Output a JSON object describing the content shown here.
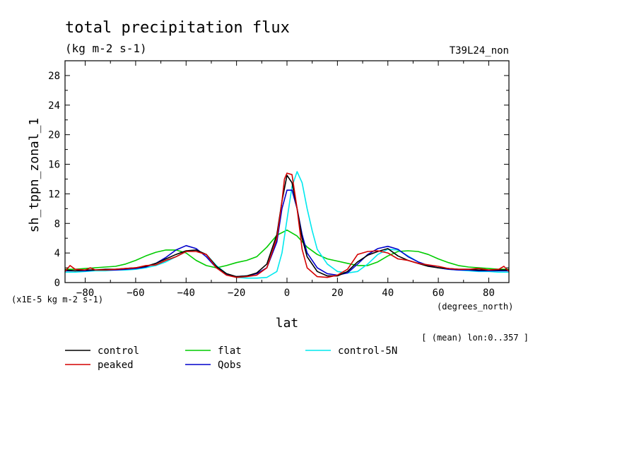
{
  "chart_data": {
    "type": "line",
    "title": "total precipitation flux",
    "subtitle": "(kg m-2 s-1)",
    "run_label": "T39L24_non",
    "xlabel": "lat",
    "xunits": "(degrees_north)",
    "ylabel": "sh_tppn_zonal_1",
    "yscale_label": "(x1E-5 kg m-2 s-1)",
    "footnote": "[ (mean) lon:0..357 ]",
    "xlim": [
      -88,
      88
    ],
    "ylim": [
      0,
      30
    ],
    "xticks": [
      -80,
      -60,
      -40,
      -20,
      0,
      20,
      40,
      60,
      80
    ],
    "yticks": [
      0,
      4,
      8,
      12,
      16,
      20,
      24,
      28
    ],
    "grid": false,
    "legend_position": "bottom",
    "series": [
      {
        "name": "control",
        "color": "#000000",
        "x": [
          -88,
          -84,
          -80,
          -76,
          -72,
          -68,
          -64,
          -60,
          -56,
          -52,
          -48,
          -44,
          -40,
          -36,
          -32,
          -28,
          -24,
          -20,
          -16,
          -12,
          -8,
          -4,
          -2,
          0,
          2,
          4,
          6,
          8,
          12,
          16,
          20,
          24,
          28,
          32,
          36,
          40,
          44,
          48,
          52,
          56,
          60,
          64,
          68,
          72,
          76,
          80,
          84,
          88
        ],
        "y": [
          1.7,
          1.6,
          1.7,
          1.7,
          1.8,
          1.8,
          1.9,
          2.0,
          2.2,
          2.6,
          3.2,
          3.8,
          4.3,
          4.4,
          3.8,
          2.2,
          1.2,
          0.8,
          0.9,
          1.3,
          2.5,
          6.5,
          11.0,
          14.5,
          13.5,
          10.0,
          6.0,
          3.5,
          1.5,
          0.9,
          0.9,
          1.5,
          2.8,
          3.7,
          4.2,
          4.6,
          3.6,
          3.0,
          2.6,
          2.2,
          2.0,
          1.9,
          1.8,
          1.8,
          1.7,
          1.7,
          1.7,
          1.7
        ]
      },
      {
        "name": "peaked",
        "color": "#d40000",
        "x": [
          -88,
          -86,
          -84,
          -80,
          -78,
          -76,
          -72,
          -68,
          -64,
          -60,
          -56,
          -52,
          -48,
          -44,
          -40,
          -36,
          -32,
          -28,
          -24,
          -20,
          -16,
          -12,
          -8,
          -4,
          -2,
          -1,
          0,
          2,
          4,
          6,
          8,
          12,
          16,
          20,
          24,
          28,
          32,
          36,
          40,
          44,
          48,
          52,
          56,
          60,
          64,
          68,
          72,
          76,
          80,
          84,
          86,
          88
        ],
        "y": [
          1.5,
          2.3,
          1.8,
          1.7,
          2.0,
          1.7,
          1.7,
          1.8,
          1.9,
          2.0,
          2.3,
          2.4,
          3.0,
          3.5,
          4.2,
          4.2,
          3.8,
          2.0,
          1.0,
          0.7,
          0.8,
          1.0,
          2.0,
          6.0,
          11.0,
          14.0,
          14.8,
          14.6,
          10.0,
          4.5,
          2.0,
          0.8,
          0.7,
          1.0,
          1.8,
          3.8,
          4.2,
          4.3,
          4.0,
          3.2,
          3.0,
          2.6,
          2.4,
          2.2,
          1.9,
          1.8,
          1.8,
          1.9,
          1.7,
          1.8,
          2.2,
          1.5
        ]
      },
      {
        "name": "flat",
        "color": "#00cc00",
        "x": [
          -88,
          -84,
          -80,
          -76,
          -72,
          -68,
          -64,
          -60,
          -56,
          -52,
          -48,
          -44,
          -40,
          -36,
          -32,
          -28,
          -24,
          -20,
          -16,
          -12,
          -8,
          -4,
          0,
          4,
          8,
          12,
          16,
          20,
          24,
          28,
          32,
          36,
          40,
          44,
          48,
          52,
          56,
          60,
          64,
          68,
          72,
          76,
          80,
          84,
          88
        ],
        "y": [
          1.8,
          1.8,
          1.9,
          2.0,
          2.1,
          2.2,
          2.5,
          3.0,
          3.6,
          4.1,
          4.4,
          4.4,
          4.0,
          3.0,
          2.3,
          2.0,
          2.3,
          2.7,
          3.0,
          3.5,
          4.8,
          6.4,
          7.1,
          6.3,
          4.8,
          3.8,
          3.2,
          2.9,
          2.6,
          2.3,
          2.3,
          2.8,
          3.6,
          4.2,
          4.3,
          4.2,
          3.8,
          3.2,
          2.7,
          2.3,
          2.1,
          2.0,
          1.9,
          1.8,
          1.8
        ]
      },
      {
        "name": "Qobs",
        "color": "#0000cc",
        "x": [
          -88,
          -84,
          -80,
          -76,
          -72,
          -68,
          -64,
          -60,
          -56,
          -52,
          -48,
          -44,
          -40,
          -36,
          -32,
          -28,
          -24,
          -20,
          -16,
          -12,
          -8,
          -4,
          -2,
          0,
          2,
          4,
          6,
          8,
          12,
          16,
          20,
          24,
          28,
          32,
          36,
          40,
          44,
          48,
          52,
          56,
          60,
          64,
          68,
          72,
          76,
          80,
          84,
          88
        ],
        "y": [
          1.6,
          1.6,
          1.6,
          1.7,
          1.7,
          1.7,
          1.8,
          1.9,
          2.1,
          2.6,
          3.4,
          4.4,
          5.0,
          4.6,
          3.5,
          2.0,
          1.1,
          0.8,
          0.9,
          1.2,
          2.0,
          5.5,
          10.0,
          12.5,
          12.5,
          10.0,
          6.5,
          4.0,
          2.0,
          1.2,
          1.0,
          1.3,
          2.5,
          3.8,
          4.6,
          4.9,
          4.5,
          3.5,
          2.8,
          2.3,
          2.0,
          1.8,
          1.7,
          1.7,
          1.6,
          1.6,
          1.6,
          1.6
        ]
      },
      {
        "name": "control-5N",
        "color": "#00e8ee",
        "x": [
          -88,
          -84,
          -80,
          -76,
          -72,
          -68,
          -64,
          -60,
          -56,
          -52,
          -48,
          -44,
          -40,
          -36,
          -32,
          -28,
          -24,
          -20,
          -16,
          -12,
          -8,
          -4,
          -2,
          0,
          2,
          4,
          6,
          8,
          10,
          12,
          16,
          20,
          24,
          28,
          32,
          36,
          40,
          44,
          48,
          52,
          56,
          60,
          64,
          68,
          72,
          76,
          80,
          84,
          88
        ],
        "y": [
          1.4,
          1.4,
          1.5,
          1.6,
          1.6,
          1.7,
          1.7,
          1.8,
          2.0,
          2.3,
          2.8,
          3.5,
          4.2,
          4.4,
          3.8,
          2.3,
          1.2,
          0.7,
          0.6,
          0.6,
          0.7,
          1.5,
          4.0,
          8.5,
          13.0,
          15.0,
          13.5,
          10.0,
          7.0,
          4.5,
          2.5,
          1.5,
          1.3,
          1.5,
          2.5,
          3.8,
          4.5,
          4.4,
          3.6,
          2.8,
          2.3,
          2.0,
          1.8,
          1.7,
          1.6,
          1.5,
          1.5,
          1.4,
          1.4
        ]
      }
    ]
  }
}
